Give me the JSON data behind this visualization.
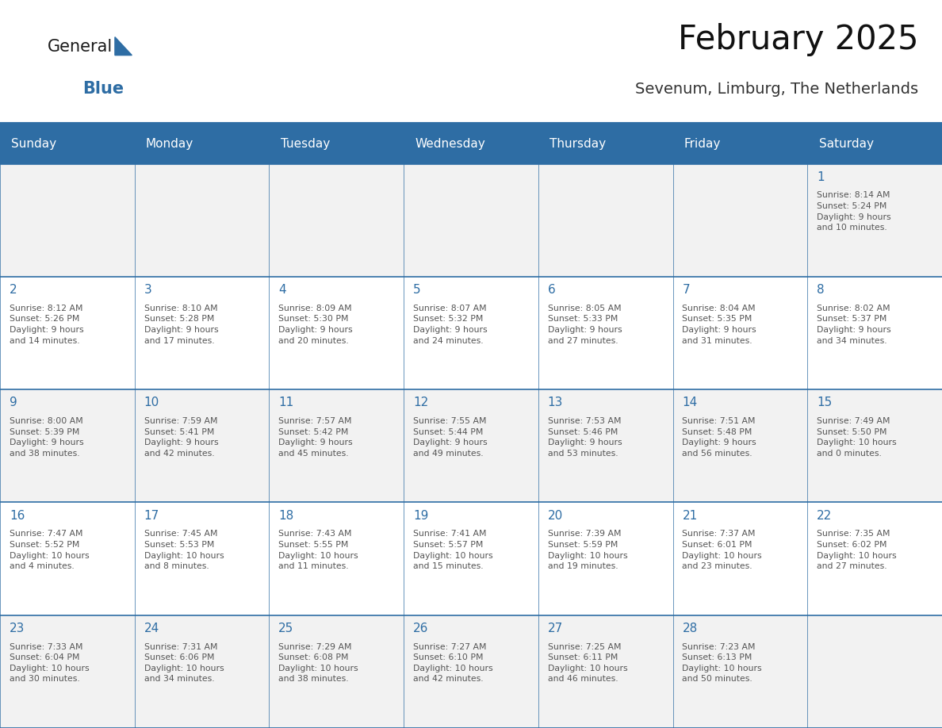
{
  "title": "February 2025",
  "subtitle": "Sevenum, Limburg, The Netherlands",
  "header_bg": "#2E6DA4",
  "header_text": "#FFFFFF",
  "cell_bg_light": "#F2F2F2",
  "cell_bg_white": "#FFFFFF",
  "text_color": "#555555",
  "day_number_color": "#2E6DA4",
  "border_color": "#2E6DA4",
  "days_of_week": [
    "Sunday",
    "Monday",
    "Tuesday",
    "Wednesday",
    "Thursday",
    "Friday",
    "Saturday"
  ],
  "weeks": [
    [
      {
        "day": null,
        "info": null
      },
      {
        "day": null,
        "info": null
      },
      {
        "day": null,
        "info": null
      },
      {
        "day": null,
        "info": null
      },
      {
        "day": null,
        "info": null
      },
      {
        "day": null,
        "info": null
      },
      {
        "day": 1,
        "info": "Sunrise: 8:14 AM\nSunset: 5:24 PM\nDaylight: 9 hours\nand 10 minutes."
      }
    ],
    [
      {
        "day": 2,
        "info": "Sunrise: 8:12 AM\nSunset: 5:26 PM\nDaylight: 9 hours\nand 14 minutes."
      },
      {
        "day": 3,
        "info": "Sunrise: 8:10 AM\nSunset: 5:28 PM\nDaylight: 9 hours\nand 17 minutes."
      },
      {
        "day": 4,
        "info": "Sunrise: 8:09 AM\nSunset: 5:30 PM\nDaylight: 9 hours\nand 20 minutes."
      },
      {
        "day": 5,
        "info": "Sunrise: 8:07 AM\nSunset: 5:32 PM\nDaylight: 9 hours\nand 24 minutes."
      },
      {
        "day": 6,
        "info": "Sunrise: 8:05 AM\nSunset: 5:33 PM\nDaylight: 9 hours\nand 27 minutes."
      },
      {
        "day": 7,
        "info": "Sunrise: 8:04 AM\nSunset: 5:35 PM\nDaylight: 9 hours\nand 31 minutes."
      },
      {
        "day": 8,
        "info": "Sunrise: 8:02 AM\nSunset: 5:37 PM\nDaylight: 9 hours\nand 34 minutes."
      }
    ],
    [
      {
        "day": 9,
        "info": "Sunrise: 8:00 AM\nSunset: 5:39 PM\nDaylight: 9 hours\nand 38 minutes."
      },
      {
        "day": 10,
        "info": "Sunrise: 7:59 AM\nSunset: 5:41 PM\nDaylight: 9 hours\nand 42 minutes."
      },
      {
        "day": 11,
        "info": "Sunrise: 7:57 AM\nSunset: 5:42 PM\nDaylight: 9 hours\nand 45 minutes."
      },
      {
        "day": 12,
        "info": "Sunrise: 7:55 AM\nSunset: 5:44 PM\nDaylight: 9 hours\nand 49 minutes."
      },
      {
        "day": 13,
        "info": "Sunrise: 7:53 AM\nSunset: 5:46 PM\nDaylight: 9 hours\nand 53 minutes."
      },
      {
        "day": 14,
        "info": "Sunrise: 7:51 AM\nSunset: 5:48 PM\nDaylight: 9 hours\nand 56 minutes."
      },
      {
        "day": 15,
        "info": "Sunrise: 7:49 AM\nSunset: 5:50 PM\nDaylight: 10 hours\nand 0 minutes."
      }
    ],
    [
      {
        "day": 16,
        "info": "Sunrise: 7:47 AM\nSunset: 5:52 PM\nDaylight: 10 hours\nand 4 minutes."
      },
      {
        "day": 17,
        "info": "Sunrise: 7:45 AM\nSunset: 5:53 PM\nDaylight: 10 hours\nand 8 minutes."
      },
      {
        "day": 18,
        "info": "Sunrise: 7:43 AM\nSunset: 5:55 PM\nDaylight: 10 hours\nand 11 minutes."
      },
      {
        "day": 19,
        "info": "Sunrise: 7:41 AM\nSunset: 5:57 PM\nDaylight: 10 hours\nand 15 minutes."
      },
      {
        "day": 20,
        "info": "Sunrise: 7:39 AM\nSunset: 5:59 PM\nDaylight: 10 hours\nand 19 minutes."
      },
      {
        "day": 21,
        "info": "Sunrise: 7:37 AM\nSunset: 6:01 PM\nDaylight: 10 hours\nand 23 minutes."
      },
      {
        "day": 22,
        "info": "Sunrise: 7:35 AM\nSunset: 6:02 PM\nDaylight: 10 hours\nand 27 minutes."
      }
    ],
    [
      {
        "day": 23,
        "info": "Sunrise: 7:33 AM\nSunset: 6:04 PM\nDaylight: 10 hours\nand 30 minutes."
      },
      {
        "day": 24,
        "info": "Sunrise: 7:31 AM\nSunset: 6:06 PM\nDaylight: 10 hours\nand 34 minutes."
      },
      {
        "day": 25,
        "info": "Sunrise: 7:29 AM\nSunset: 6:08 PM\nDaylight: 10 hours\nand 38 minutes."
      },
      {
        "day": 26,
        "info": "Sunrise: 7:27 AM\nSunset: 6:10 PM\nDaylight: 10 hours\nand 42 minutes."
      },
      {
        "day": 27,
        "info": "Sunrise: 7:25 AM\nSunset: 6:11 PM\nDaylight: 10 hours\nand 46 minutes."
      },
      {
        "day": 28,
        "info": "Sunrise: 7:23 AM\nSunset: 6:13 PM\nDaylight: 10 hours\nand 50 minutes."
      },
      {
        "day": null,
        "info": null
      }
    ]
  ],
  "logo_text_general": "General",
  "logo_text_blue": "Blue",
  "logo_color_general": "#1a1a1a",
  "logo_color_blue": "#2E6DA4",
  "logo_triangle_color": "#2E6DA4"
}
